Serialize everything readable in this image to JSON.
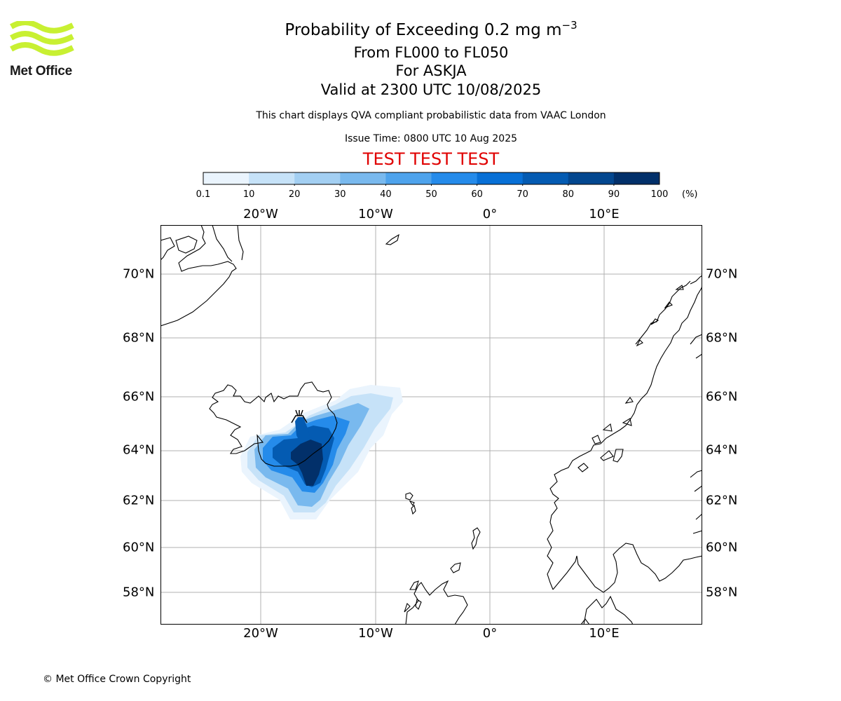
{
  "logo": {
    "text": "Met Office",
    "color": "#c8f032"
  },
  "title": {
    "line1_prefix": "Probability of Exceeding 0.2 mg m",
    "line1_sup": "−3",
    "line2": "From FL000 to FL050",
    "line3": "For ASKJA",
    "line4": "Valid at 2300 UTC 10/08/2025"
  },
  "subtitle": "This chart displays QVA compliant probabilistic data from VAAC London",
  "issue_time": "Issue Time: 0800 UTC 10 Aug 2025",
  "test_banner": {
    "text": "TEST TEST TEST",
    "color": "#e00000"
  },
  "colorbar": {
    "ticks": [
      "0.1",
      "10",
      "20",
      "30",
      "40",
      "50",
      "60",
      "70",
      "80",
      "90",
      "100"
    ],
    "unit": "(%)",
    "colors": [
      "#eaf4fd",
      "#c6e2f8",
      "#a3cff2",
      "#79b9ee",
      "#4ea3ec",
      "#258bea",
      "#0870d6",
      "#045bb2",
      "#03478f",
      "#02306a"
    ]
  },
  "map": {
    "volcano_name": "ASKJA",
    "lon_labels": [
      "20°W",
      "10°W",
      "0°",
      "10°E"
    ],
    "lat_labels": [
      "70°N",
      "68°N",
      "66°N",
      "64°N",
      "62°N",
      "60°N",
      "58°N"
    ]
  },
  "chart_data": {
    "type": "heatmap",
    "title": "Probability of Exceeding 0.2 mg m−3",
    "variable": "probability of exceeding 0.2 mg m−3 ash concentration, FL000 to FL050",
    "unit": "(%)",
    "levels": [
      0.1,
      10,
      20,
      30,
      40,
      50,
      60,
      70,
      80,
      90,
      100
    ],
    "lon_range": [
      -28.7,
      18.5
    ],
    "lat_range": [
      56.8,
      71.6
    ],
    "lat_ticks": [
      70,
      68,
      66,
      64,
      62,
      60,
      58
    ],
    "lon_ticks": [
      -20,
      -10,
      0,
      10
    ],
    "grid": true,
    "source_volcano": {
      "name": "ASKJA",
      "lon": -16.75,
      "lat": 65.03
    },
    "plume_regions": [
      {
        "level": "0.1-10",
        "lon_range": [
          -21.2,
          -8.8
        ],
        "lat_range": [
          61.0,
          65.9
        ]
      },
      {
        "level": "10-20",
        "lon_range": [
          -20.8,
          -9.7
        ],
        "lat_range": [
          61.3,
          65.6
        ]
      },
      {
        "level": "30-50",
        "lon_range": [
          -20.3,
          -10.8
        ],
        "lat_range": [
          61.8,
          65.0
        ]
      },
      {
        "level": "60-80",
        "lon_range": [
          -19.7,
          -12.2
        ],
        "lat_range": [
          62.3,
          64.8
        ]
      },
      {
        "level": "80-100",
        "lon_range": [
          -17.3,
          -14.7
        ],
        "lat_range": [
          62.6,
          64.2
        ]
      }
    ]
  },
  "copyright": "© Met Office Crown Copyright"
}
